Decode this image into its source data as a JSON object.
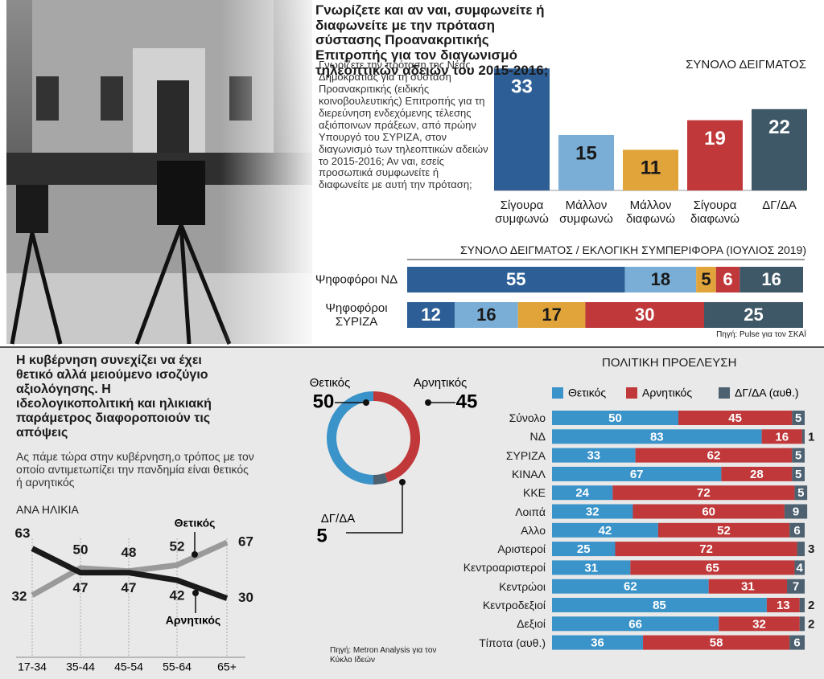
{
  "chart_data": [
    {
      "type": "bar",
      "title": "Γνωρίζετε και αν ναι, συμφωνείτε ή διαφωνείτε με την πρόταση σύστασης Προανακριτικής Επιτροπής για τον διαγωνισμό τηλεοπτικών αδειών του 2015-2016;",
      "subtitle": "ΣΥΝΟΛΟ ΔΕΙΓΜΑΤΟΣ",
      "question": "Γνωρίζετε την πρόταση της Νέας Δημοκρατίας για τη σύσταση Προανακριτικής (ειδικής κοινοβουλευτικής) Επιτροπής για τη διερεύνηση ενδεχόμενης τέλεσης αξιόποινων πράξεων, από πρώην Υπουργό του ΣΥΡΙΖΑ, στον διαγωνισμό των τηλεοπτικών αδειών το 2015-2016; Αν ναι, εσείς προσωπικά συμφωνείτε ή διαφωνείτε με αυτή την πρόταση;",
      "categories": [
        "Σίγουρα συμφωνώ",
        "Μάλλον συμφωνώ",
        "Μάλλον διαφωνώ",
        "Σίγουρα διαφωνώ",
        "ΔΓ/ΔΑ"
      ],
      "values": [
        33,
        15,
        11,
        19,
        22
      ],
      "colors": [
        "#2d5f96",
        "#7aaed6",
        "#e0a43a",
        "#c0383a",
        "#3f5868"
      ]
    },
    {
      "type": "stacked-hbar",
      "title": "ΣΥΝΟΛΟ ΔΕΙΓΜΑΤΟΣ / ΕΚΛΟΓΙΚΗ ΣΥΜΠΕΡΙΦΟΡΑ (ΙΟΥΛΙΟΣ 2019)",
      "categories": [
        "Ψηφοφόροι ΝΔ",
        "Ψηφοφόροι ΣΥΡΙΖΑ"
      ],
      "series": [
        {
          "color": "#2d5f96",
          "values": [
            55,
            12
          ]
        },
        {
          "color": "#7aaed6",
          "values": [
            18,
            16
          ]
        },
        {
          "color": "#e0a43a",
          "values": [
            5,
            17
          ]
        },
        {
          "color": "#c0383a",
          "values": [
            6,
            30
          ]
        },
        {
          "color": "#3f5868",
          "values": [
            16,
            25
          ]
        }
      ],
      "source": "Πηγή: Pulse για τον ΣΚΑΪ"
    },
    {
      "type": "donut",
      "title": "Η κυβέρνηση συνεχίζει να έχει θετικό αλλά μειούμενο ισοζύγιο αξιολόγησης. Η ιδεολογικοπολιτική και ηλικιακή παράμετρος διαφοροποιούν τις απόψεις",
      "subtitle": "Ας πάμε τώρα στην κυβέρνηση,ο τρόπος με τον οποίο αντιμετωπίζει την πανδημία είναι θετικός ή αρνητικός",
      "categories": [
        "Θετικός",
        "Αρνητικός",
        "ΔΓ/ΔΑ"
      ],
      "values": [
        50,
        45,
        5
      ],
      "colors": [
        "#3a93c9",
        "#c0383a",
        "#4d6170"
      ]
    },
    {
      "type": "line",
      "title": "ΑΝΑ ΗΛΙΚΙΑ",
      "categories": [
        "17-34",
        "35-44",
        "45-54",
        "55-64",
        "65+"
      ],
      "series": [
        {
          "name": "Θετικός",
          "color": "#9a9a9a",
          "values": [
            32,
            50,
            48,
            52,
            67
          ]
        },
        {
          "name": "Αρνητικός",
          "color": "#1a1a1a",
          "values": [
            63,
            47,
            47,
            42,
            30
          ]
        }
      ]
    },
    {
      "type": "stacked-hbar",
      "title": "ΠΟΛΙΤΙΚΗ ΠΡΟΕΛΕΥΣΗ",
      "categories": [
        "Σύνολο",
        "ΝΔ",
        "ΣΥΡΙΖΑ",
        "ΚΙΝΑΛ",
        "ΚΚΕ",
        "Λοιπά",
        "Αλλο",
        "Αριστεροί",
        "Κεντροαριστεροί",
        "Κεντρώοι",
        "Κεντροδεξιοί",
        "Δεξιοί",
        "Τίποτα (αυθ.)"
      ],
      "series": [
        {
          "name": "Θετικός",
          "color": "#3a93c9",
          "values": [
            50,
            83,
            33,
            67,
            24,
            32,
            42,
            25,
            31,
            62,
            85,
            66,
            36
          ]
        },
        {
          "name": "Αρνητικός",
          "color": "#c0383a",
          "values": [
            45,
            16,
            62,
            28,
            72,
            60,
            52,
            72,
            65,
            31,
            13,
            32,
            58
          ]
        },
        {
          "name": "ΔΓ/ΔΑ (αυθ.)",
          "color": "#4d6170",
          "values": [
            5,
            1,
            5,
            5,
            5,
            9,
            6,
            3,
            4,
            7,
            2,
            2,
            6
          ]
        }
      ],
      "source": "Πηγή: Metron Analysis για τον Κύκλο Ιδεών"
    }
  ]
}
